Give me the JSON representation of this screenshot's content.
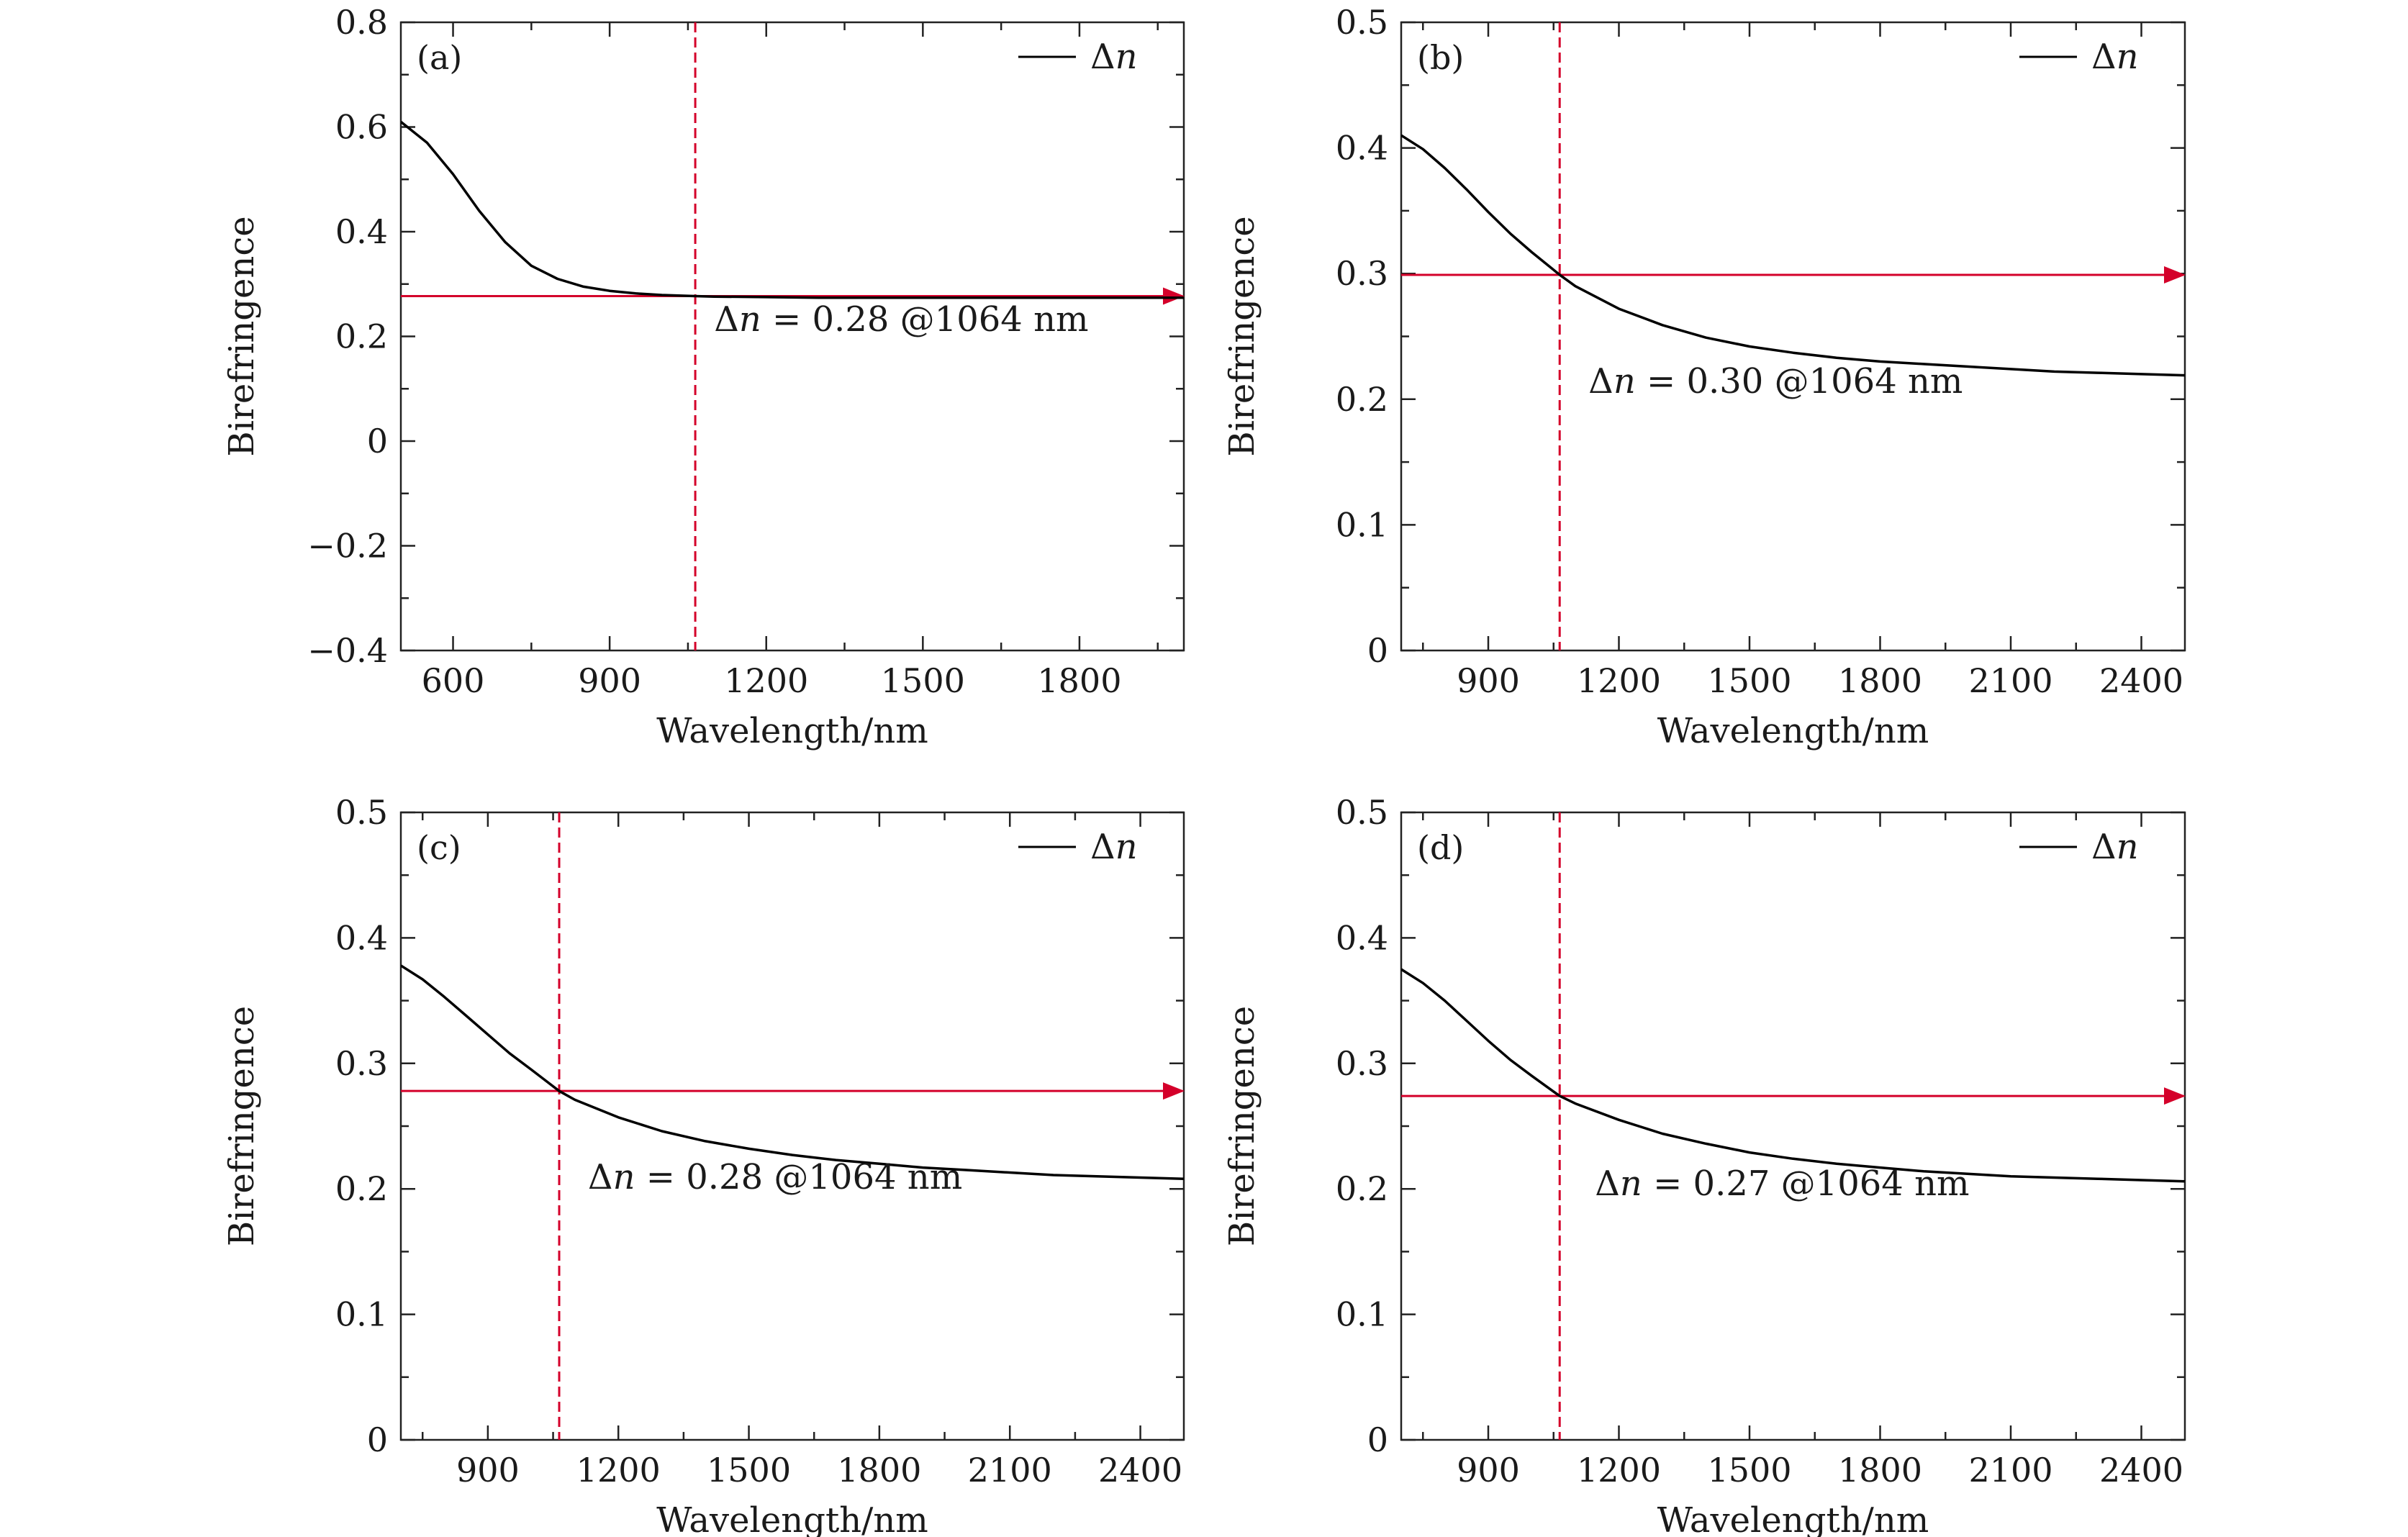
{
  "chart_data": [
    {
      "type": "line",
      "panel_label": "(a)",
      "xlabel": "Wavelength/nm",
      "ylabel": "Birefringence",
      "xlim": [
        500,
        2000
      ],
      "ylim": [
        -0.4,
        0.8
      ],
      "xticks": [
        600,
        900,
        1200,
        1500,
        1800
      ],
      "xtick_labels": [
        "600",
        "900",
        "1200",
        "1500",
        "1800"
      ],
      "yticks": [
        -0.4,
        -0.2,
        0,
        0.2,
        0.4,
        0.6,
        0.8
      ],
      "ytick_labels": [
        "−0.4",
        "−0.2",
        "0",
        "0.2",
        "0.4",
        "0.6",
        "0.8"
      ],
      "legend": {
        "prefix": "Δ",
        "var": "n",
        "position": "top-right"
      },
      "series": [
        {
          "name": "Δn",
          "color": "#000000",
          "x": [
            500,
            550,
            600,
            650,
            700,
            750,
            800,
            850,
            900,
            950,
            1000,
            1064,
            1100,
            1200,
            1300,
            1400,
            1500,
            1600,
            1700,
            1800,
            1900,
            2000
          ],
          "y": [
            0.61,
            0.57,
            0.51,
            0.44,
            0.38,
            0.335,
            0.31,
            0.295,
            0.287,
            0.282,
            0.279,
            0.277,
            0.276,
            0.275,
            0.274,
            0.274,
            0.274,
            0.274,
            0.274,
            0.274,
            0.274,
            0.274
          ]
        }
      ],
      "marker_x": 1064,
      "marker_y": 0.277,
      "annotation": {
        "prefix": "Δ",
        "var": "n",
        "rest": " = 0.28 @1064 nm",
        "x": 1100,
        "y": 0.21
      },
      "marker_color": "#d4002a"
    },
    {
      "type": "line",
      "panel_label": "(b)",
      "xlabel": "Wavelength/nm",
      "ylabel": "Birefringence",
      "xlim": [
        700,
        2500
      ],
      "ylim": [
        0,
        0.5
      ],
      "xticks": [
        900,
        1200,
        1500,
        1800,
        2100,
        2400
      ],
      "xtick_labels": [
        "900",
        "1200",
        "1500",
        "1800",
        "2100",
        "2400"
      ],
      "yticks": [
        0,
        0.1,
        0.2,
        0.3,
        0.4,
        0.5
      ],
      "ytick_labels": [
        "0",
        "0.1",
        "0.2",
        "0.3",
        "0.4",
        "0.5"
      ],
      "legend": {
        "prefix": "Δ",
        "var": "n",
        "position": "top-right"
      },
      "series": [
        {
          "name": "Δn",
          "color": "#000000",
          "x": [
            700,
            750,
            800,
            850,
            900,
            950,
            1000,
            1064,
            1100,
            1200,
            1300,
            1400,
            1500,
            1600,
            1700,
            1800,
            1900,
            2000,
            2100,
            2200,
            2300,
            2400,
            2500
          ],
          "y": [
            0.41,
            0.399,
            0.384,
            0.367,
            0.349,
            0.332,
            0.317,
            0.299,
            0.29,
            0.272,
            0.259,
            0.249,
            0.242,
            0.237,
            0.233,
            0.23,
            0.228,
            0.226,
            0.224,
            0.222,
            0.221,
            0.22,
            0.219
          ]
        }
      ],
      "marker_x": 1064,
      "marker_y": 0.299,
      "annotation": {
        "prefix": "Δ",
        "var": "n",
        "rest": " = 0.30 @1064 nm",
        "x": 1130,
        "y": 0.205
      },
      "marker_color": "#d4002a"
    },
    {
      "type": "line",
      "panel_label": "(c)",
      "xlabel": "Wavelength/nm",
      "ylabel": "Birefringence",
      "xlim": [
        700,
        2500
      ],
      "ylim": [
        0,
        0.5
      ],
      "xticks": [
        900,
        1200,
        1500,
        1800,
        2100,
        2400
      ],
      "xtick_labels": [
        "900",
        "1200",
        "1500",
        "1800",
        "2100",
        "2400"
      ],
      "yticks": [
        0,
        0.1,
        0.2,
        0.3,
        0.4,
        0.5
      ],
      "ytick_labels": [
        "0",
        "0.1",
        "0.2",
        "0.3",
        "0.4",
        "0.5"
      ],
      "legend": {
        "prefix": "Δ",
        "var": "n",
        "position": "top-right"
      },
      "series": [
        {
          "name": "Δn",
          "color": "#000000",
          "x": [
            700,
            750,
            800,
            850,
            900,
            950,
            1000,
            1064,
            1100,
            1200,
            1300,
            1400,
            1500,
            1600,
            1700,
            1800,
            1900,
            2000,
            2100,
            2200,
            2300,
            2400,
            2500
          ],
          "y": [
            0.378,
            0.367,
            0.353,
            0.338,
            0.323,
            0.308,
            0.295,
            0.278,
            0.271,
            0.257,
            0.246,
            0.238,
            0.232,
            0.227,
            0.223,
            0.22,
            0.217,
            0.215,
            0.213,
            0.211,
            0.21,
            0.209,
            0.208
          ]
        }
      ],
      "marker_x": 1064,
      "marker_y": 0.278,
      "annotation": {
        "prefix": "Δ",
        "var": "n",
        "rest": " = 0.28 @1064 nm",
        "x": 1130,
        "y": 0.2
      },
      "marker_color": "#d4002a"
    },
    {
      "type": "line",
      "panel_label": "(d)",
      "xlabel": "Wavelength/nm",
      "ylabel": "Birefringence",
      "xlim": [
        700,
        2500
      ],
      "ylim": [
        0,
        0.5
      ],
      "xticks": [
        900,
        1200,
        1500,
        1800,
        2100,
        2400
      ],
      "xtick_labels": [
        "900",
        "1200",
        "1500",
        "1800",
        "2100",
        "2400"
      ],
      "yticks": [
        0,
        0.1,
        0.2,
        0.3,
        0.4,
        0.5
      ],
      "ytick_labels": [
        "0",
        "0.1",
        "0.2",
        "0.3",
        "0.4",
        "0.5"
      ],
      "legend": {
        "prefix": "Δ",
        "var": "n",
        "position": "top-right"
      },
      "series": [
        {
          "name": "Δn",
          "color": "#000000",
          "x": [
            700,
            750,
            800,
            850,
            900,
            950,
            1000,
            1064,
            1100,
            1200,
            1300,
            1400,
            1500,
            1600,
            1700,
            1800,
            1900,
            2000,
            2100,
            2200,
            2300,
            2400,
            2500
          ],
          "y": [
            0.375,
            0.364,
            0.35,
            0.334,
            0.318,
            0.303,
            0.29,
            0.274,
            0.268,
            0.255,
            0.244,
            0.236,
            0.229,
            0.224,
            0.22,
            0.217,
            0.214,
            0.212,
            0.21,
            0.209,
            0.208,
            0.207,
            0.206
          ]
        }
      ],
      "marker_x": 1064,
      "marker_y": 0.274,
      "annotation": {
        "prefix": "Δ",
        "var": "n",
        "rest": " = 0.27 @1064 nm",
        "x": 1145,
        "y": 0.195
      },
      "marker_color": "#d4002a"
    }
  ]
}
